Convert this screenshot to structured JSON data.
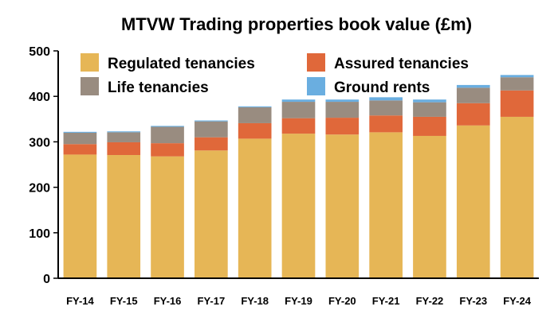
{
  "chart_data": {
    "type": "bar",
    "stacked": true,
    "title": "MTVW Trading properties book value (£m)",
    "xlabel": "",
    "ylabel": "",
    "ylim": [
      0,
      500
    ],
    "yticks": [
      0,
      100,
      200,
      300,
      400,
      500
    ],
    "grid": false,
    "legend_position": "top-left",
    "categories": [
      "FY-14",
      "FY-15",
      "FY-16",
      "FY-17",
      "FY-18",
      "FY-19",
      "FY-20",
      "FY-21",
      "FY-22",
      "FY-23",
      "FY-24"
    ],
    "series": [
      {
        "name": "Regulated tenancies",
        "color": "#E6B656",
        "values": [
          272,
          271,
          268,
          281,
          307,
          318,
          316,
          321,
          313,
          336,
          355
        ]
      },
      {
        "name": "Assured tenancies",
        "color": "#E0683A",
        "values": [
          23,
          28,
          29,
          29,
          34,
          34,
          37,
          37,
          42,
          49,
          58
        ]
      },
      {
        "name": "Life tenancies",
        "color": "#998C80",
        "values": [
          25,
          22,
          36,
          35,
          35,
          36,
          35,
          33,
          32,
          34,
          29
        ]
      },
      {
        "name": "Ground rents",
        "color": "#6AAEE0",
        "values": [
          2,
          2,
          2,
          2,
          2,
          5,
          5,
          7,
          6,
          6,
          5
        ]
      }
    ]
  }
}
